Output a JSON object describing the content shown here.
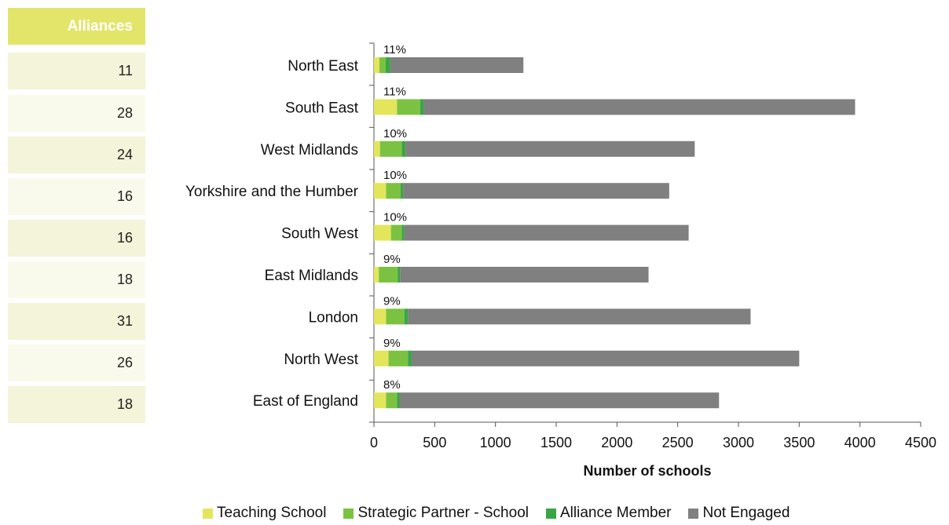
{
  "side_table": {
    "header": "Alliances",
    "values": [
      "11",
      "28",
      "24",
      "16",
      "16",
      "18",
      "31",
      "26",
      "18"
    ]
  },
  "colors": {
    "teaching": "#e3e65b",
    "strategic": "#7cc242",
    "alliance": "#3aa545",
    "not_engaged": "#808080",
    "side_header": "#e2e569"
  },
  "chart_data": {
    "type": "bar",
    "orientation": "horizontal",
    "stacked": true,
    "categories": [
      "North East",
      "South East",
      "West Midlands",
      "Yorkshire and the Humber",
      "South West",
      "East Midlands",
      "London",
      "North West",
      "East of England"
    ],
    "series": [
      {
        "name": "Teaching School",
        "values": [
          45,
          190,
          50,
          100,
          140,
          40,
          100,
          120,
          100
        ]
      },
      {
        "name": "Strategic Partner - School",
        "values": [
          50,
          190,
          180,
          120,
          90,
          155,
          150,
          160,
          90
        ]
      },
      {
        "name": "Alliance Member",
        "values": [
          40,
          30,
          30,
          20,
          20,
          20,
          30,
          30,
          20
        ]
      },
      {
        "name": "Not Engaged",
        "values": [
          1095,
          3550,
          2380,
          2190,
          2340,
          2045,
          2820,
          3190,
          2630
        ]
      }
    ],
    "bar_labels": [
      "11%",
      "11%",
      "10%",
      "10%",
      "10%",
      "9%",
      "9%",
      "9%",
      "8%"
    ],
    "xlabel": "Number of schools",
    "xlim": [
      0,
      4500
    ],
    "xticks": [
      "0",
      "500",
      "1000",
      "1500",
      "2000",
      "2500",
      "3000",
      "3500",
      "4000",
      "4500"
    ],
    "grid": false,
    "legend_position": "bottom"
  }
}
